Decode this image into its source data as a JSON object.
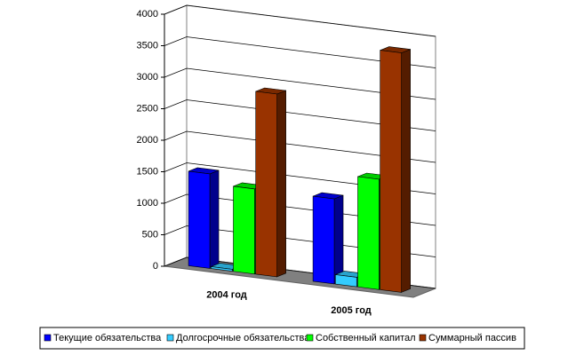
{
  "chart_data": {
    "type": "bar3d",
    "categories": [
      "2004 год",
      "2005 год"
    ],
    "series": [
      {
        "name": "Текущие обязательства",
        "color": "#0000ff",
        "values": [
          1500,
          1350
        ]
      },
      {
        "name": "Долгосрочные обязательства",
        "color": "#33ccff",
        "values": [
          30,
          150
        ]
      },
      {
        "name": "Собственный капитал",
        "color": "#00ff00",
        "values": [
          1350,
          1750
        ]
      },
      {
        "name": "Суммарный пассив",
        "color": "#993300",
        "values": [
          2900,
          3800
        ]
      }
    ],
    "ylim": [
      0,
      4000
    ],
    "yticks": [
      0,
      500,
      1000,
      1500,
      2000,
      2500,
      3000,
      3500,
      4000
    ],
    "grid": true
  }
}
